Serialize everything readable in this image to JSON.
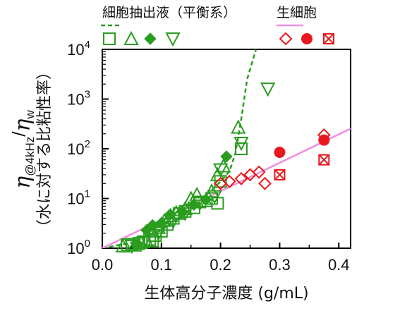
{
  "chart_data": {
    "type": "scatter",
    "xlabel": "生体高分子濃度 (g/mL)",
    "ylabel_main": "η@4kHz/ηw",
    "ylabel_sub": "（水に対する比粘性率）",
    "xlim": [
      0.0,
      0.42
    ],
    "ylim_log10": [
      0,
      4
    ],
    "yscale": "log",
    "x_ticks": [
      "0.0",
      "0.1",
      "0.2",
      "0.3",
      "0.4"
    ],
    "x_tick_values": [
      0.0,
      0.1,
      0.2,
      0.3,
      0.4
    ],
    "y_tick_exponents": [
      "0",
      "1",
      "2",
      "3",
      "4"
    ],
    "y_tick_base": "10",
    "grid": false,
    "colors": {
      "extract": "#2a9d1f",
      "cell": "#e8191e",
      "cell_fit": "#f08fe0"
    },
    "legend_groups": [
      {
        "title": "細胞抽出液（平衡系）",
        "line_style": "dashed",
        "color_key": "extract",
        "markers": [
          "square-open",
          "triangle-open",
          "diamond-filled",
          "triangle-down-open"
        ]
      },
      {
        "title": "生細胞",
        "line_style": "solid",
        "color_key": "cell",
        "line_color_key": "cell_fit",
        "markers": [
          "diamond-open",
          "circle-filled",
          "square-cross"
        ]
      }
    ],
    "series": [
      {
        "marker": "square-open",
        "color_key": "extract",
        "points": [
          [
            0.042,
            1.18
          ],
          [
            0.05,
            1.2
          ],
          [
            0.062,
            1.25
          ],
          [
            0.07,
            1.35
          ],
          [
            0.08,
            1.5
          ],
          [
            0.085,
            1.4
          ],
          [
            0.09,
            1.8
          ],
          [
            0.1,
            2.2
          ],
          [
            0.11,
            3.0
          ],
          [
            0.12,
            4.0
          ],
          [
            0.13,
            5.0
          ],
          [
            0.14,
            5.5
          ],
          [
            0.155,
            6.5
          ],
          [
            0.165,
            8.5
          ],
          [
            0.185,
            10.0
          ],
          [
            0.195,
            8.0
          ],
          [
            0.2,
            22.0
          ],
          [
            0.235,
            100.0
          ]
        ]
      },
      {
        "marker": "triangle-open",
        "color_key": "extract",
        "points": [
          [
            0.035,
            1.1
          ],
          [
            0.055,
            1.15
          ],
          [
            0.065,
            1.3
          ],
          [
            0.075,
            1.4
          ],
          [
            0.085,
            2.2
          ],
          [
            0.095,
            2.6
          ],
          [
            0.105,
            3.6
          ],
          [
            0.115,
            4.5
          ],
          [
            0.125,
            5.2
          ],
          [
            0.14,
            6.2
          ],
          [
            0.15,
            10.0
          ],
          [
            0.16,
            12.0
          ],
          [
            0.175,
            9.0
          ],
          [
            0.185,
            14.0
          ],
          [
            0.195,
            30.0
          ],
          [
            0.205,
            45.0
          ],
          [
            0.23,
            270.0
          ]
        ]
      },
      {
        "marker": "diamond-filled",
        "color_key": "extract",
        "points": [
          [
            0.06,
            1.2
          ],
          [
            0.075,
            2.3
          ],
          [
            0.085,
            2.9
          ],
          [
            0.1,
            3.2
          ],
          [
            0.115,
            4.8
          ],
          [
            0.135,
            5.5
          ],
          [
            0.155,
            7.5
          ],
          [
            0.175,
            9.5
          ],
          [
            0.21,
            70.0
          ]
        ]
      },
      {
        "marker": "triangle-down-open",
        "color_key": "extract",
        "points": [
          [
            0.05,
            1.1
          ],
          [
            0.07,
            1.3
          ],
          [
            0.095,
            2.0
          ],
          [
            0.12,
            3.5
          ],
          [
            0.14,
            5.0
          ],
          [
            0.165,
            8.0
          ],
          [
            0.19,
            11.0
          ],
          [
            0.2,
            38.0
          ],
          [
            0.235,
            130.0
          ],
          [
            0.28,
            1600.0
          ]
        ]
      },
      {
        "marker": "diamond-open",
        "color_key": "cell",
        "points": [
          [
            0.2,
            20.0
          ],
          [
            0.215,
            22.0
          ],
          [
            0.235,
            25.0
          ],
          [
            0.25,
            30.0
          ],
          [
            0.265,
            34.0
          ],
          [
            0.275,
            20.0
          ],
          [
            0.375,
            190.0
          ]
        ]
      },
      {
        "marker": "circle-filled",
        "color_key": "cell",
        "points": [
          [
            0.3,
            85.0
          ],
          [
            0.375,
            150.0
          ]
        ]
      },
      {
        "marker": "square-cross",
        "color_key": "cell",
        "points": [
          [
            0.3,
            30.0
          ],
          [
            0.375,
            60.0
          ]
        ]
      }
    ],
    "lines": [
      {
        "name_key": "extract",
        "style": "dashed",
        "color_key": "extract",
        "points": [
          [
            0.0,
            1.0
          ],
          [
            0.05,
            1.3
          ],
          [
            0.1,
            2.3
          ],
          [
            0.15,
            6.0
          ],
          [
            0.2,
            22.0
          ],
          [
            0.215,
            35.0
          ],
          [
            0.225,
            80.0
          ],
          [
            0.235,
            400.0
          ],
          [
            0.245,
            2500.0
          ],
          [
            0.26,
            10000.0
          ]
        ]
      },
      {
        "name_key": "cell",
        "style": "solid",
        "color_key": "cell_fit",
        "points": [
          [
            0.0,
            1.0
          ],
          [
            0.43,
            290.0
          ]
        ]
      }
    ]
  }
}
